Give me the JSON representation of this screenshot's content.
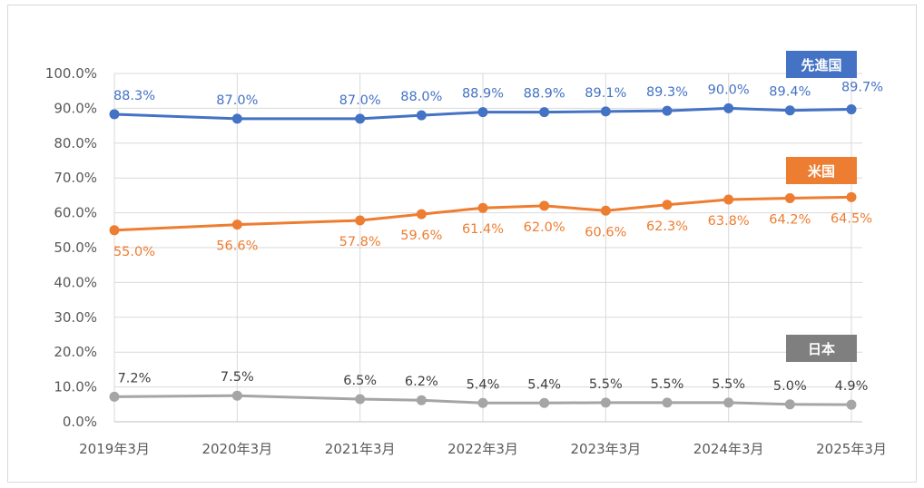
{
  "chart_data": {
    "type": "line",
    "title": "",
    "xlabel": "",
    "ylabel": "",
    "ylim": [
      0,
      100
    ],
    "ytick_step": 10,
    "y_format": "percent_1dp",
    "grid": true,
    "x_labels": [
      "2019年3月",
      "2020年3月",
      "2021年3月",
      "2022年3月",
      "2023年3月",
      "2024年3月",
      "2025年3月"
    ],
    "x": [
      "2019年3月",
      "2020年3月",
      "2021年3月",
      "2021年9月",
      "2022年3月",
      "2022年9月",
      "2023年3月",
      "2023年9月",
      "2024年3月",
      "2024年9月",
      "2025年3月"
    ],
    "x_halfyear_index": [
      0,
      2,
      4,
      5,
      6,
      7,
      8,
      9,
      10,
      11,
      12
    ],
    "series": [
      {
        "name": "先進国",
        "color": "#4472c4",
        "label_color": "#4472c4",
        "label_position": "above",
        "values": [
          88.3,
          87.0,
          87.0,
          88.0,
          88.9,
          88.9,
          89.1,
          89.3,
          90.0,
          89.4,
          89.7
        ]
      },
      {
        "name": "米国",
        "color": "#ed7d31",
        "label_color": "#ed7d31",
        "label_position": "below",
        "values": [
          55.0,
          56.6,
          57.8,
          59.6,
          61.4,
          62.0,
          60.6,
          62.3,
          63.8,
          64.2,
          64.5
        ]
      },
      {
        "name": "日本",
        "color": "#a5a5a5",
        "label_color": "#404040",
        "label_position": "above",
        "values": [
          7.2,
          7.5,
          6.5,
          6.2,
          5.4,
          5.4,
          5.5,
          5.5,
          5.5,
          5.0,
          4.9
        ]
      }
    ],
    "legend": {
      "placement": "inline-right",
      "entries": [
        {
          "name": "先進国",
          "bg": "#4472c4"
        },
        {
          "name": "米国",
          "bg": "#ed7d31"
        },
        {
          "name": "日本",
          "bg": "#7f7f7f"
        }
      ]
    }
  }
}
